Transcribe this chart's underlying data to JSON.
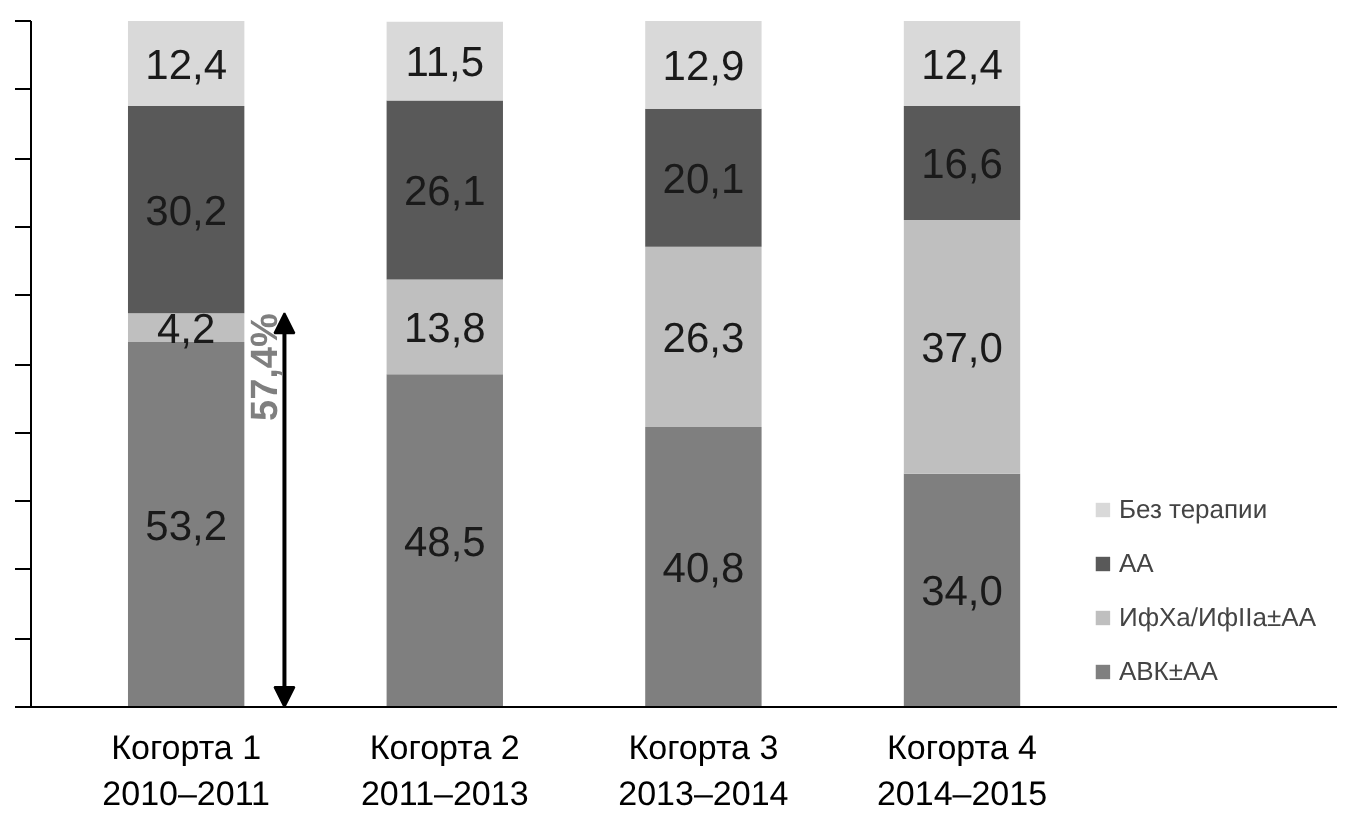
{
  "chart_data": {
    "type": "bar",
    "stacked": true,
    "categories": [
      "Когорта 1\n2010–2011",
      "Когорта 2\n2011–2013",
      "Когорта 3\n2013–2014",
      "Когорта 4\n2014–2015"
    ],
    "series": [
      {
        "name": "АВК±АА",
        "color": "#7f7f7f",
        "values": [
          53.2,
          48.5,
          40.8,
          34.0
        ],
        "value_labels": [
          "53,2",
          "48,5",
          "40,8",
          "34,0"
        ]
      },
      {
        "name": "ИфХа/ИфIIa±АА",
        "color": "#bfbfbf",
        "values": [
          4.2,
          13.8,
          26.3,
          37.0
        ],
        "value_labels": [
          "4,2",
          "13,8",
          "26,3",
          "37,0"
        ]
      },
      {
        "name": "АА",
        "color": "#595959",
        "values": [
          30.2,
          26.1,
          20.1,
          16.6
        ],
        "value_labels": [
          "30,2",
          "26,1",
          "20,1",
          "16,6"
        ]
      },
      {
        "name": "Без терапии",
        "color": "#d9d9d9",
        "values": [
          12.4,
          11.5,
          12.9,
          12.4
        ],
        "value_labels": [
          "12,4",
          "11,5",
          "12,9",
          "12,4"
        ]
      }
    ],
    "ylim": [
      0,
      100
    ],
    "tick_labels": "x",
    "grid": false,
    "legend": "right",
    "annotations": [
      {
        "text": "57,4%",
        "x": "Когорта 1\n2010–2011",
        "y": 57.4
      }
    ]
  }
}
